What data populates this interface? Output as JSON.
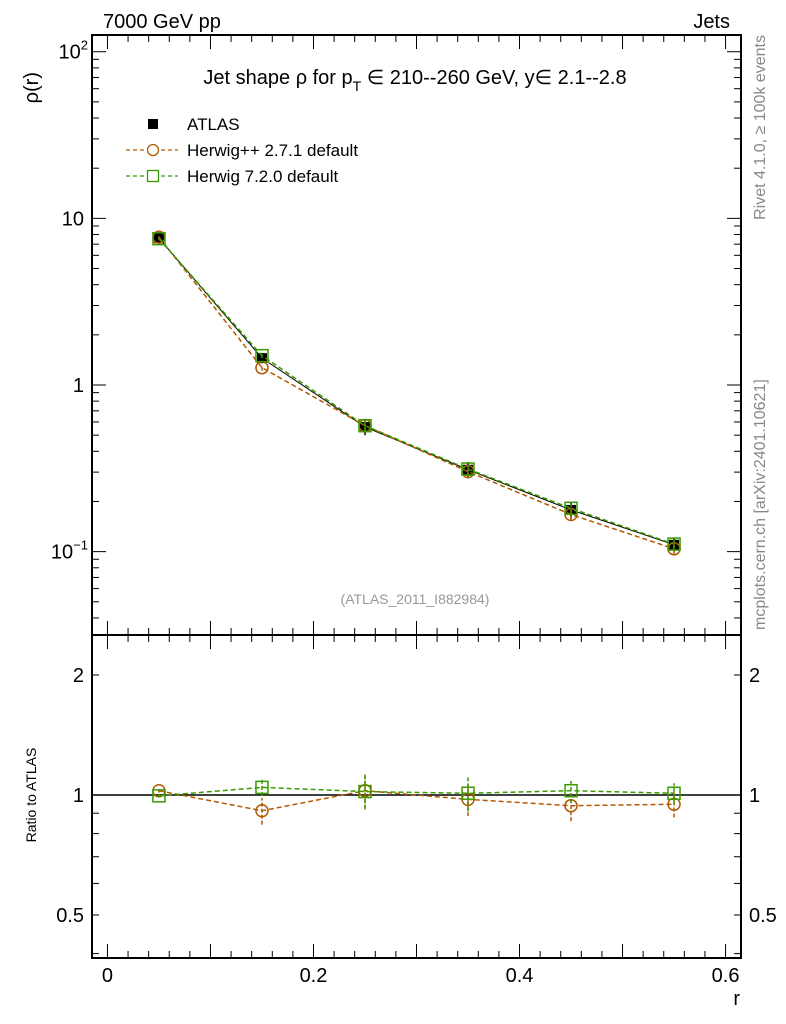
{
  "header": {
    "left": "7000 GeV pp",
    "right": "Jets"
  },
  "side_labels": {
    "rivet": "Rivet 4.1.0, ≥ 100k events",
    "mcplots": "mcplots.cern.ch [arXiv:2401.10621]"
  },
  "chart_data": [
    {
      "type": "line",
      "title": "Jet shape ρ for p_T ∈ 210--260 GeV, y∈ 2.1--2.8",
      "title_parts": {
        "a": "Jet shape ρ for p",
        "sub": "T",
        "b": " ∈ 210--260 GeV, y∈ 2.1--2.8"
      },
      "ylabel": "ρ(r)",
      "yscale": "log",
      "ylim": [
        0.0316,
        126
      ],
      "xlim": [
        -0.015,
        0.615
      ],
      "yticks": [
        {
          "v": 100,
          "label": "10",
          "sup": "2"
        },
        {
          "v": 10,
          "label": "10"
        },
        {
          "v": 1,
          "label": "1"
        },
        {
          "v": 0.1,
          "label": "10",
          "sup": "−1"
        }
      ],
      "annotation": "(ATLAS_2011_I882984)",
      "legend_position": "top-left",
      "x": [
        0.05,
        0.15,
        0.25,
        0.35,
        0.45,
        0.55
      ],
      "series": [
        {
          "name": "ATLAS",
          "color": "#000000",
          "marker": "filled-square",
          "values": [
            7.6,
            1.45,
            0.56,
            0.31,
            0.178,
            0.11
          ],
          "err": [
            0.3,
            0.1,
            0.06,
            0.035,
            0.02,
            0.01
          ]
        },
        {
          "name": "Herwig++ 2.7.1 default",
          "color": "#b35900",
          "marker": "open-circle",
          "values": [
            7.7,
            1.27,
            0.57,
            0.302,
            0.167,
            0.104
          ],
          "err": [
            0.1,
            0.05,
            0.04,
            0.02,
            0.012,
            0.007
          ]
        },
        {
          "name": "Herwig 7.2.0 default",
          "color": "#3a9a00",
          "marker": "open-square",
          "values": [
            7.55,
            1.5,
            0.57,
            0.313,
            0.182,
            0.111
          ],
          "err": [
            0.1,
            0.05,
            0.04,
            0.02,
            0.012,
            0.007
          ]
        }
      ]
    },
    {
      "type": "line",
      "ylabel": "Ratio to ATLAS",
      "xlabel": "r",
      "yscale": "log",
      "ylim": [
        0.39,
        2.52
      ],
      "xlim": [
        -0.015,
        0.615
      ],
      "yticks": [
        {
          "v": 2,
          "label": "2"
        },
        {
          "v": 1,
          "label": "1"
        },
        {
          "v": 0.5,
          "label": "0.5"
        }
      ],
      "xticks": [
        {
          "v": 0,
          "label": "0"
        },
        {
          "v": 0.2,
          "label": "0.2"
        },
        {
          "v": 0.4,
          "label": "0.4"
        },
        {
          "v": 0.6,
          "label": "0.6"
        }
      ],
      "x": [
        0.05,
        0.15,
        0.25,
        0.35,
        0.45,
        0.55
      ],
      "series": [
        {
          "name": "Herwig++ 2.7.1 default",
          "color": "#b35900",
          "marker": "open-circle",
          "values": [
            1.025,
            0.913,
            1.025,
            0.975,
            0.94,
            0.948
          ],
          "err": [
            0.01,
            0.07,
            0.1,
            0.09,
            0.08,
            0.07
          ]
        },
        {
          "name": "Herwig 7.2.0 default",
          "color": "#3a9a00",
          "marker": "open-square",
          "values": [
            0.995,
            1.045,
            1.02,
            1.01,
            1.025,
            1.01
          ],
          "err": [
            0.01,
            0.05,
            0.1,
            0.1,
            0.07,
            0.06
          ]
        }
      ]
    }
  ]
}
